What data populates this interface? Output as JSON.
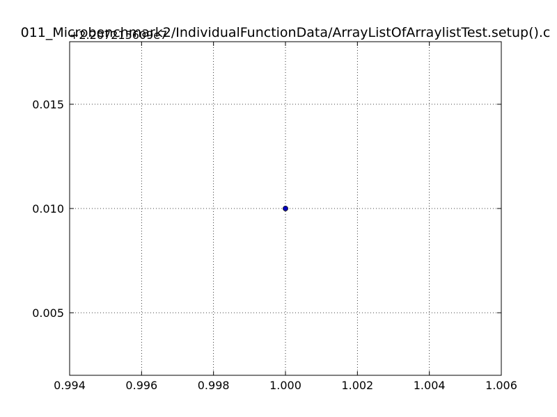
{
  "chart_data": {
    "type": "scatter",
    "title": "011_Microbenchmark2/IndividualFunctionData/ArrayListOfArraylistTest.setup().c",
    "y_offset_label": "+2.207215609e7",
    "xlabel": "",
    "ylabel": "",
    "xlim": [
      0.994,
      1.006
    ],
    "ylim": [
      0.002,
      0.018
    ],
    "x_ticks": [
      0.994,
      0.996,
      0.998,
      1.0,
      1.002,
      1.004,
      1.006
    ],
    "x_tick_labels": [
      "0.994",
      "0.996",
      "0.998",
      "1.000",
      "1.002",
      "1.004",
      "1.006"
    ],
    "y_ticks": [
      0.005,
      0.01,
      0.015
    ],
    "y_tick_labels": [
      "0.005",
      "0.010",
      "0.015"
    ],
    "grid": true,
    "points": [
      {
        "x": 1.0,
        "y": 0.01
      }
    ],
    "marker_color": "#0000bf"
  }
}
